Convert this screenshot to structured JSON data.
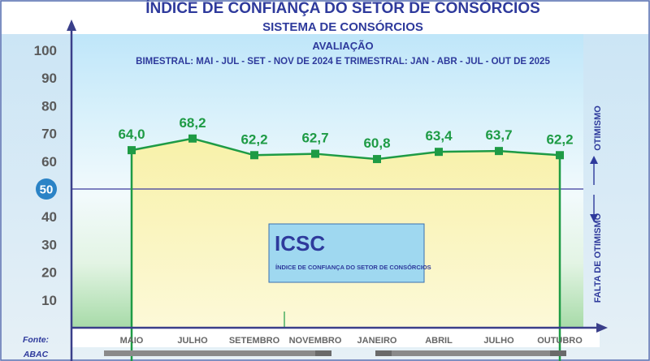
{
  "chart_data": {
    "type": "line",
    "title": "ÍNDICE DE CONFIANÇA DO SETOR DE CONSÓRCIOS",
    "subtitle": "SISTEMA DE CONSÓRCIOS",
    "evaluation_label": "AVALIAÇÃO",
    "period_label": "BIMESTRAL: MAI - JUL - SET - NOV DE 2024 E TRIMESTRAL: JAN - ABR - JUL - OUT DE 2025",
    "categories": [
      "MAIO",
      "JULHO",
      "SETEMBRO",
      "NOVEMBRO",
      "JANEIRO",
      "ABRIL",
      "JULHO",
      "OUTUBRO"
    ],
    "series": [
      {
        "values": [
          64.0,
          68.2,
          62.2,
          62.7,
          60.8,
          63.4,
          63.7,
          62.2
        ]
      }
    ],
    "data_labels": [
      "64,0",
      "68,2",
      "62,2",
      "62,7",
      "60,8",
      "63,4",
      "63,7",
      "62,2"
    ],
    "y_ticks": [
      "10",
      "20",
      "30",
      "40",
      "50",
      "60",
      "70",
      "80",
      "90",
      "100"
    ],
    "highlight_tick": "50",
    "reference_value": 50,
    "ylim": [
      0,
      100
    ],
    "grid": false,
    "optimism_label": "OTIMISMO",
    "lack_of_optimism_label": "FALTA DE OTIMISMO",
    "legend_box": {
      "acronym": "ICSC",
      "full_name": "ÍNDICE DE CONFIANÇA DO SETOR DE CONSÓRCIOS"
    },
    "source_label": "Fonte:",
    "source_name": "ABAC"
  },
  "colors": {
    "title": "#2e3a9c",
    "line": "#1e9b45",
    "reference_line": "#3a3a9c",
    "highlight_circle": "#2b83c6",
    "tick_text": "#5a5a5a",
    "box_fill": "#9fd8f0"
  }
}
